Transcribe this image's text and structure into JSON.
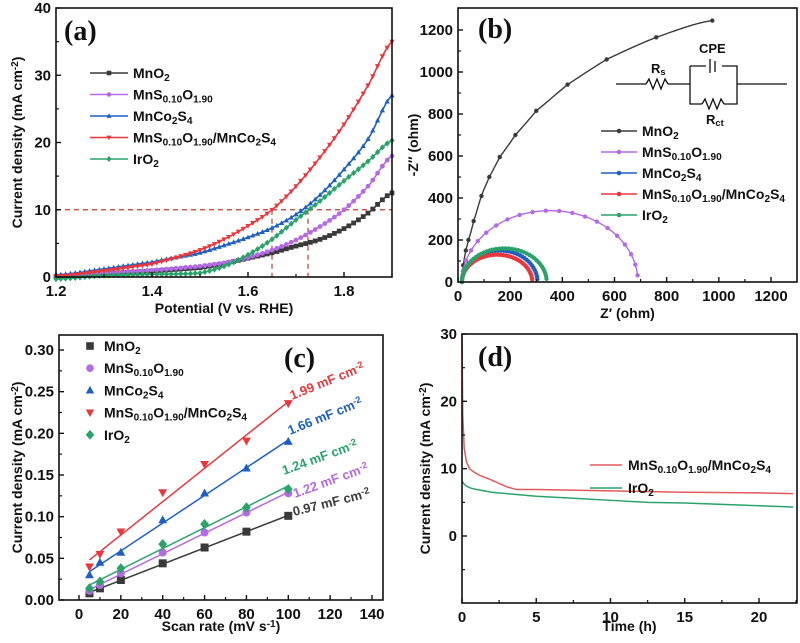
{
  "colors": {
    "MnO2": "#3a3a3a",
    "MnS010O190": "#b36ae2",
    "MnCo2S4": "#1f5fbf",
    "composite": "#e8373d",
    "IrO2": "#2aa36b"
  },
  "chart_data": [
    {
      "id": "a",
      "type": "line",
      "panel_label": "(a)",
      "title": "",
      "xlabel": "Potential (V vs. RHE)",
      "ylabel": "Current density (mA cm⁻²)",
      "xlim": [
        1.2,
        1.9
      ],
      "ylim": [
        0,
        40
      ],
      "xticks": [
        "1.2",
        "1.4",
        "1.6",
        "1.8"
      ],
      "yticks": [
        "0",
        "10",
        "20",
        "30",
        "40"
      ],
      "legend_position": "upper-left",
      "reference_lines": {
        "y": 10,
        "x": [
          1.65,
          1.725
        ]
      },
      "series": [
        {
          "name": "MnO₂",
          "key": "MnO2",
          "marker": "square",
          "x": [
            1.2,
            1.3,
            1.4,
            1.5,
            1.55,
            1.6,
            1.65,
            1.7,
            1.75,
            1.8,
            1.85,
            1.9
          ],
          "y": [
            0.1,
            0.5,
            0.9,
            1.4,
            2.0,
            2.8,
            3.6,
            4.6,
            5.6,
            7.2,
            9.5,
            12.5
          ]
        },
        {
          "name": "MnS₀.₁₀O₁.₉₀",
          "key": "MnS010O190",
          "marker": "circle",
          "x": [
            1.2,
            1.3,
            1.4,
            1.5,
            1.55,
            1.6,
            1.65,
            1.7,
            1.75,
            1.8,
            1.85,
            1.9
          ],
          "y": [
            0.2,
            0.6,
            1.0,
            1.6,
            2.1,
            2.9,
            4.0,
            5.5,
            7.5,
            10.0,
            13.5,
            18.0
          ]
        },
        {
          "name": "MnCo₂S₄",
          "key": "MnCo2S4",
          "marker": "triangle-up",
          "x": [
            1.2,
            1.3,
            1.4,
            1.45,
            1.5,
            1.55,
            1.6,
            1.65,
            1.7,
            1.75,
            1.8,
            1.85,
            1.9
          ],
          "y": [
            0.3,
            1.2,
            2.2,
            2.9,
            3.6,
            4.7,
            5.9,
            7.3,
            9.3,
            12.2,
            16.0,
            20.5,
            27.0
          ]
        },
        {
          "name": "MnS₀.₁₀O₁.₉₀/MnCo₂S₄",
          "key": "composite",
          "marker": "triangle-down",
          "x": [
            1.2,
            1.3,
            1.4,
            1.45,
            1.5,
            1.55,
            1.6,
            1.65,
            1.7,
            1.75,
            1.8,
            1.85,
            1.9
          ],
          "y": [
            0.1,
            0.9,
            1.9,
            2.9,
            4.0,
            5.6,
            7.6,
            10.0,
            13.5,
            17.8,
            22.7,
            28.5,
            35.0
          ]
        },
        {
          "name": "IrO₂",
          "key": "IrO2",
          "marker": "diamond",
          "x": [
            1.2,
            1.3,
            1.4,
            1.5,
            1.55,
            1.6,
            1.65,
            1.7,
            1.75,
            1.8,
            1.85,
            1.9
          ],
          "y": [
            -0.3,
            0.2,
            0.4,
            0.6,
            1.6,
            3.3,
            5.6,
            8.5,
            11.3,
            14.3,
            17.2,
            20.3
          ]
        }
      ]
    },
    {
      "id": "b",
      "type": "scatter",
      "panel_label": "(b)",
      "title": "",
      "xlabel": "Z′ (ohm)",
      "ylabel": "-Z″ (ohm)",
      "xlim": [
        0,
        1300
      ],
      "ylim": [
        0,
        1300
      ],
      "xticks": [
        "0",
        "200",
        "400",
        "600",
        "800",
        "1000",
        "1200"
      ],
      "yticks": [
        "0",
        "200",
        "400",
        "600",
        "800",
        "1000",
        "1200"
      ],
      "legend_position": "right",
      "equivalent_circuit": {
        "labels": [
          "Rₛ",
          "CPE",
          "Rₓₜ"
        ],
        "Rs": "R",
        "Rs_sub": "s",
        "CPE": "CPE",
        "Rct": "R",
        "Rct_sub": "ct"
      },
      "series": [
        {
          "name": "MnO₂",
          "key": "MnO2",
          "type": "arc",
          "center": [
            1700,
            0
          ],
          "start_z": 15,
          "end_z": 975,
          "peak_z": 1245,
          "x": [
            15,
            20,
            30,
            40,
            60,
            90,
            120,
            160,
            220,
            300,
            420,
            570,
            760,
            975
          ],
          "y": [
            0,
            80,
            150,
            200,
            290,
            410,
            500,
            595,
            700,
            815,
            940,
            1060,
            1165,
            1245
          ]
        },
        {
          "name": "MnS₀.₁₀O₁.₉₀",
          "key": "MnS010O190",
          "type": "semicircle",
          "r_start": 15,
          "r_end": 690,
          "max_z": 340
        },
        {
          "name": "MnCo₂S₄",
          "key": "MnCo2S4",
          "type": "semicircle",
          "r_start": 15,
          "r_end": 305,
          "max_z": 150
        },
        {
          "name": "MnS₀.₁₀O₁.₉₀/MnCo₂S₄",
          "key": "composite",
          "type": "semicircle",
          "r_start": 15,
          "r_end": 285,
          "max_z": 130
        },
        {
          "name": "IrO₂",
          "key": "IrO2",
          "type": "semicircle",
          "r_start": 15,
          "r_end": 340,
          "max_z": 160
        }
      ]
    },
    {
      "id": "c",
      "type": "scatter",
      "panel_label": "(c)",
      "title": "",
      "xlabel": "Scan rate (mV s⁻¹)",
      "ylabel": "Current density (mA cm⁻²)",
      "xlim": [
        -15,
        150
      ],
      "ylim": [
        0,
        0.32
      ],
      "xticks": [
        "0",
        "20",
        "40",
        "60",
        "80",
        "100",
        "120",
        "140"
      ],
      "yticks": [
        "0.00",
        "0.05",
        "0.10",
        "0.15",
        "0.20",
        "0.25",
        "0.30"
      ],
      "legend_position": "upper-left",
      "x": [
        5,
        10,
        20,
        40,
        60,
        80,
        100
      ],
      "series": [
        {
          "name": "MnO₂",
          "key": "MnO2",
          "marker": "square",
          "y": [
            0.008,
            0.014,
            0.024,
            0.044,
            0.063,
            0.082,
            0.101
          ],
          "annotation": "0.97 mF cm⁻²"
        },
        {
          "name": "MnS₀.₁₀O₁.₉₀",
          "key": "MnS010O190",
          "marker": "circle",
          "y": [
            0.011,
            0.018,
            0.032,
            0.057,
            0.081,
            0.105,
            0.128
          ],
          "annotation": "1.22 mF cm⁻²"
        },
        {
          "name": "MnCo₂S₄",
          "key": "MnCo2S4",
          "marker": "triangle-up",
          "y": [
            0.03,
            0.045,
            0.057,
            0.096,
            0.128,
            0.158,
            0.19
          ],
          "annotation": "1.66 mF cm⁻²"
        },
        {
          "name": "MnS₀.₁₀O₁.₉₀/MnCo₂S₄",
          "key": "composite",
          "marker": "triangle-down",
          "y": [
            0.04,
            0.055,
            0.082,
            0.129,
            0.163,
            0.191,
            0.236
          ],
          "annotation": "1.99 mF cm⁻²"
        },
        {
          "name": "IrO₂",
          "key": "IrO2",
          "marker": "diamond",
          "y": [
            0.014,
            0.022,
            0.038,
            0.067,
            0.091,
            0.111,
            0.133
          ],
          "annotation": "1.24 mF cm⁻²"
        }
      ]
    },
    {
      "id": "d",
      "type": "line",
      "panel_label": "(d)",
      "title": "",
      "xlabel": "Time (h)",
      "ylabel": "Current density (mA cm⁻²)",
      "xlim": [
        0,
        22.5
      ],
      "ylim": [
        -10,
        30
      ],
      "xticks": [
        "0",
        "5",
        "10",
        "15",
        "20"
      ],
      "yticks": [
        "0",
        "10",
        "20",
        "30"
      ],
      "legend_position": "right",
      "series": [
        {
          "name": "MnS₀.₁₀O₁.₉₀/MnCo₂S₄",
          "key": "composite",
          "x": [
            0,
            0.05,
            0.15,
            0.3,
            0.5,
            0.8,
            1.2,
            2.0,
            2.5,
            3.0,
            3.7,
            5,
            10,
            15,
            20,
            22.3
          ],
          "y": [
            30,
            18,
            13,
            11,
            10,
            9.5,
            9.0,
            8.3,
            7.8,
            7.3,
            6.9,
            6.9,
            6.7,
            6.5,
            6.4,
            6.3
          ]
        },
        {
          "name": "IrO₂",
          "key": "IrO2",
          "x": [
            0,
            0.1,
            0.3,
            0.6,
            1,
            2,
            3,
            5,
            7.5,
            10,
            12.5,
            15,
            17.5,
            20,
            22.3
          ],
          "y": [
            8.2,
            7.8,
            7.4,
            7.1,
            6.9,
            6.5,
            6.3,
            5.9,
            5.6,
            5.3,
            5.0,
            4.9,
            4.7,
            4.5,
            4.3
          ]
        }
      ]
    }
  ]
}
